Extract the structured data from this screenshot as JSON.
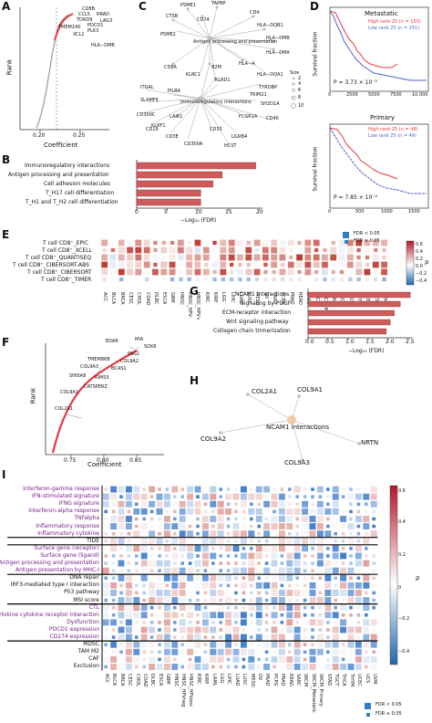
{
  "labels": {
    "A": "A",
    "B": "B",
    "C": "C",
    "D": "D",
    "E": "E",
    "F": "F",
    "G": "G",
    "H": "H",
    "I": "I"
  },
  "panel_a": {
    "ylabel": "Rank",
    "xlabel": "Coefficient",
    "xticks": [
      "0.20",
      "0.25"
    ],
    "genes": [
      "CD8B",
      "CCL5",
      "RRAD",
      "TDRD9",
      "PDCD1",
      "LAG3",
      "TMEM140",
      "XCL1",
      "PLK3",
      "HLA−DMB"
    ]
  },
  "panel_b": {
    "categories": [
      "Immunoregulatory interactions",
      "Antigen processing and presentation",
      "Cell adhesion molecules",
      "T_H17 cell differentiation",
      "T_H1 and T_H2 cell differentiation"
    ],
    "values": [
      19.5,
      14.0,
      12.5,
      10.5,
      10.5
    ],
    "xticks": [
      "0",
      "5",
      "10",
      "15",
      "20"
    ],
    "xlabel": "−Log₁₀ (FDR)"
  },
  "panel_c": {
    "hub1": "Antigen processing and presentation",
    "hub2": "Immunoregulatory interactions",
    "genes1": [
      "PSME1",
      "TAPBP",
      "CTSB",
      "CD74",
      "CD4",
      "PSME2",
      "HLA−DQB1",
      "HLA−DMB",
      "HLA−DMA",
      "HLA−A",
      "HLA−DQA1",
      "B2M",
      "KLRC1",
      "KLRD1",
      "CD8A"
    ],
    "genes2": [
      "ITGAL",
      "PILRA",
      "SLAMF6",
      "CD300C",
      "KLRF1",
      "LAIR1",
      "CD40",
      "CD3E",
      "CD300A",
      "CD33",
      "HCST",
      "CD19",
      "LILRB4",
      "FCGR1A",
      "SH2D1A",
      "TYROBP",
      "TRIM21"
    ],
    "size_title": "Size",
    "size_values": [
      "2",
      "4",
      "6",
      "8",
      "10"
    ]
  },
  "panel_d": {
    "top": {
      "title": "Metastatic",
      "legend_high": "High rank 25 (n = 150)",
      "legend_low": "Low rank 25 (n = 151)",
      "pvalue": "P = 3.73 × 10⁻²",
      "xticks": [
        "0",
        "2500",
        "5000",
        "7500",
        "10,000"
      ]
    },
    "bottom": {
      "title": "Primary",
      "legend_high": "High rank 25 (n = 48)",
      "legend_low": "Low rank 25 (n = 49)",
      "pvalue": "P = 7.85 × 10⁻²",
      "xticks": [
        "0",
        "500",
        "1000",
        "1500"
      ]
    },
    "ylabel": "Survival fraction",
    "yticks": [
      "0",
      "0.2",
      "0.4",
      "0.6",
      "0.8",
      "1.0"
    ]
  },
  "panel_e": {
    "rows": [
      "T cell CD8⁺_EPIC",
      "T cell CD8⁺_XCELL",
      "T cell CD8⁺_QUANTISEQ",
      "T cell CD8⁺_CIBERSORT-ABS",
      "T cell CD8⁺_CIBERSORT",
      "T cell CD8⁺_TIMER"
    ],
    "cols": [
      "ACC",
      "BLCA",
      "BRCA",
      "CESC",
      "CHOL",
      "COAD",
      "DLBC",
      "ESCA",
      "GBM",
      "HNSC",
      "HNSC_HPV-",
      "HNSC_HPV+",
      "KIRC",
      "KIRP",
      "LGG",
      "LIHC",
      "LUAD",
      "LUSC",
      "MESO",
      "OV",
      "PAAD",
      "PCPG",
      "PRAD",
      "READ",
      "SARC",
      "SKCM",
      "SKCM_Met",
      "STAD",
      "TGCT",
      "THCA",
      "THYM",
      "UCEC",
      "UCS",
      "UVM"
    ],
    "legend_fdr_lt": "FDR < 0.05",
    "legend_fdr_ge": "FDR ≥ 0.05",
    "colorbar_ticks": [
      "0.6",
      "0.4",
      "0.2",
      "0.0",
      "−0.2",
      "−0.4"
    ],
    "colorbar_label": "ρ"
  },
  "panel_f": {
    "ylabel": "Rank",
    "xlabel": "Coefficient",
    "xticks": [
      "0.75",
      "0.80",
      "0.85"
    ],
    "genes": [
      "EDAR",
      "MIA",
      "SOX8",
      "PSG1",
      "COL9A2",
      "TMEM86B",
      "BCAS1",
      "COL9A3",
      "SHISA8",
      "RIMS3",
      "CATSPERZ",
      "COL9A1",
      "COL2A1"
    ]
  },
  "panel_g": {
    "categories": [
      "NCAM1 interactions",
      "Signaling by PDGF",
      "ECM-receptor interaction",
      "Wnt signaling pathway",
      "Collagen chain trimerization"
    ],
    "values": [
      2.55,
      2.3,
      2.15,
      2.05,
      1.95
    ],
    "xticks": [
      "0.0",
      "0.5",
      "1.0",
      "1.5",
      "2.0",
      "2.5"
    ],
    "xlabel": "−Log₁₀ (FDR)"
  },
  "panel_h": {
    "hub": "NCAM1 interactions",
    "genes": [
      "COL2A1",
      "COL9A1",
      "COL9A2",
      "NRTN",
      "COL9A3"
    ]
  },
  "panel_i": {
    "rows": [
      {
        "label": "Interferon-gamma response",
        "color": "purple"
      },
      {
        "label": "IFN-stimulated signature",
        "color": "purple"
      },
      {
        "label": "IFNG signature",
        "color": "purple"
      },
      {
        "label": "Interferon-alpha response",
        "color": "purple"
      },
      {
        "label": "TNFalpha",
        "color": "purple"
      },
      {
        "label": "Inflammatory response",
        "color": "purple"
      },
      {
        "label": "Inflammatory cytokine",
        "color": "purple"
      },
      {
        "label": "TIDE",
        "color": "black"
      },
      {
        "label": "Surface gene (receptor)",
        "color": "purple"
      },
      {
        "label": "Surface gene (ligand)",
        "color": "purple"
      },
      {
        "label": "Antigen processing and presentation",
        "color": "purple"
      },
      {
        "label": "Antigen presentation by MHC-I",
        "color": "purple"
      },
      {
        "label": "DNA repair",
        "color": "black"
      },
      {
        "label": "IRF3-mediated type I interaction",
        "color": "black"
      },
      {
        "label": "P53 pathway",
        "color": "black"
      },
      {
        "label": "MSI score",
        "color": "black"
      },
      {
        "label": "CTL",
        "color": "purple"
      },
      {
        "label": "Cytokine cytokine receptor interaction",
        "color": "purple"
      },
      {
        "label": "Dysfunction",
        "color": "purple"
      },
      {
        "label": "PDCD1 expression",
        "color": "purple"
      },
      {
        "label": "CD274 expression",
        "color": "purple"
      },
      {
        "label": "MDSC",
        "color": "black"
      },
      {
        "label": "TAM M2",
        "color": "black"
      },
      {
        "label": "CAF",
        "color": "black"
      },
      {
        "label": "Exclusion",
        "color": "black"
      }
    ],
    "cols": [
      "ACC",
      "BLCA",
      "BRCA",
      "CESC",
      "CHOL",
      "COAD",
      "DLBC",
      "ESCA",
      "GBM",
      "HNSC",
      "HNSC_HPVneg",
      "HNSC_HPVpos",
      "KIRC",
      "KIRP",
      "LAML",
      "LGG",
      "LIHC",
      "LUAD",
      "LUSC",
      "MESO",
      "OV",
      "PAAD",
      "PCPG",
      "PRAD",
      "READ",
      "SARC",
      "SKCM",
      "SKCM_Metastatic",
      "SKCM_Primary",
      "STAD",
      "TGCT",
      "THCA",
      "THYM",
      "UCEC",
      "UCS",
      "UVM"
    ],
    "legend_fdr_lt": "FDR < 0.05",
    "legend_fdr_ge": "FDR ≥ 0.05",
    "colorbar_ticks": [
      "0.6",
      "0.4",
      "0.2",
      "0",
      "−0.2",
      "−0.4"
    ],
    "colorbar_label": "ρ"
  },
  "colors": {
    "red": "#e8383d",
    "blue": "#4b63c6",
    "bar": "#cd5c5c",
    "pos": "#b2182b",
    "neg": "#2166ac"
  }
}
